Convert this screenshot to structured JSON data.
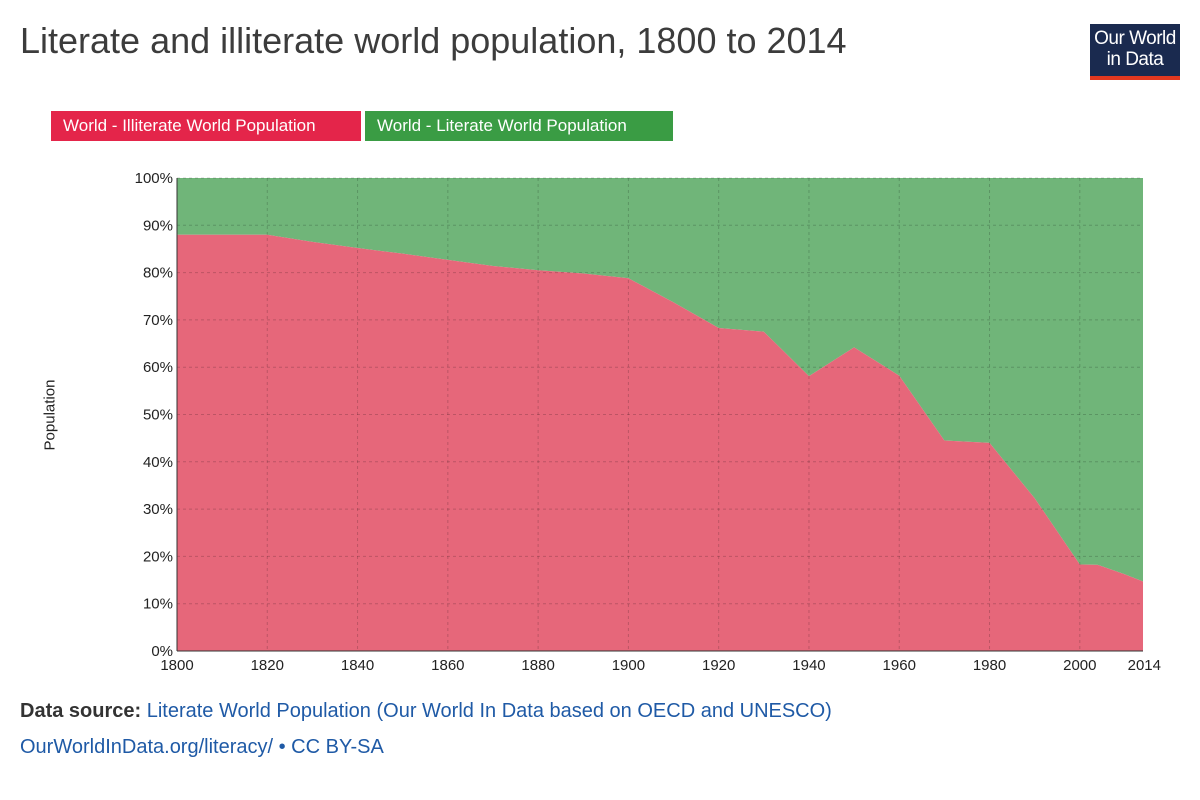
{
  "page": {
    "title": "Literate and illiterate world population, 1800 to 2014",
    "logo": {
      "line1": "Our World",
      "line2": "in Data"
    },
    "colors": {
      "illiterate": "#e4254a",
      "literate": "#3a9c44",
      "illiterate_fill": "#e6677a",
      "literate_fill": "#70b579",
      "logo_bg": "#1a2a4f",
      "logo_bar": "#e2381f",
      "link": "#1f5aa6"
    }
  },
  "source": {
    "label": "Data source:",
    "text": "Literate World Population (Our World In Data based on OECD and UNESCO)",
    "url_text": "OurWorldInData.org/literacy/",
    "license": "• CC BY-SA"
  },
  "chart_data": {
    "type": "area",
    "stacked": true,
    "normalized": true,
    "title": "Literate and illiterate world population, 1800 to 2014",
    "xlabel": "",
    "ylabel": "Population",
    "xlim": [
      1800,
      2014
    ],
    "ylim": [
      0,
      100
    ],
    "x_ticks": [
      "1800",
      "1820",
      "1840",
      "1860",
      "1880",
      "1900",
      "1920",
      "1940",
      "1960",
      "1980",
      "2000",
      "2014"
    ],
    "y_ticks": [
      "0%",
      "10%",
      "20%",
      "30%",
      "40%",
      "50%",
      "60%",
      "70%",
      "80%",
      "90%",
      "100%"
    ],
    "grid": true,
    "legend_position": "top-left",
    "x": [
      1800,
      1820,
      1830,
      1840,
      1850,
      1860,
      1870,
      1880,
      1890,
      1900,
      1910,
      1920,
      1930,
      1940,
      1950,
      1960,
      1970,
      1980,
      1990,
      2000,
      2004,
      2010,
      2014
    ],
    "series": [
      {
        "name": "World - Illiterate World Population",
        "values": [
          88,
          88,
          86.5,
          85.2,
          84,
          82.7,
          81.4,
          80.5,
          79.8,
          78.8,
          73.7,
          68.3,
          67.5,
          58.1,
          64.2,
          58.2,
          44.5,
          44,
          32.3,
          18.3,
          18.2,
          16.2,
          14.7
        ]
      },
      {
        "name": "World - Literate World Population",
        "values": [
          12,
          12,
          13.5,
          14.8,
          16,
          17.3,
          18.6,
          19.5,
          20.2,
          21.2,
          26.3,
          31.7,
          32.5,
          41.9,
          35.8,
          41.8,
          55.5,
          56,
          67.7,
          81.7,
          81.8,
          83.8,
          85.3
        ]
      }
    ]
  }
}
